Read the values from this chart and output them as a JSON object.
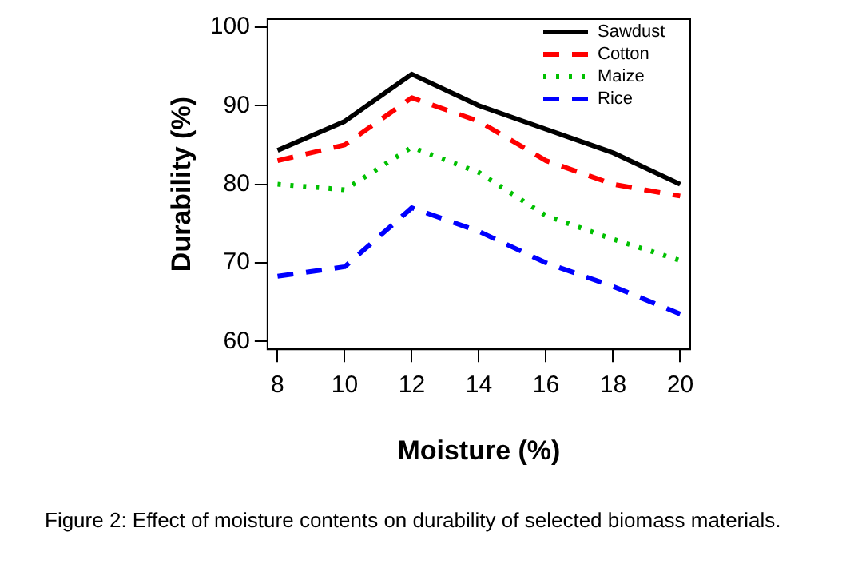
{
  "chart_data": {
    "type": "line",
    "xlabel": "Moisture (%)",
    "ylabel": "Durability (%)",
    "x": [
      8,
      10,
      12,
      14,
      16,
      18,
      20
    ],
    "xlim": [
      7.7,
      20.3
    ],
    "xticks": [
      8,
      10,
      12,
      14,
      16,
      18,
      20
    ],
    "ylim": [
      59,
      101
    ],
    "yticks": [
      60,
      70,
      80,
      90,
      100
    ],
    "grid": false,
    "legend": "top right",
    "marker": "none",
    "series": [
      {
        "name": "Sawdust",
        "color": "#000000",
        "line_style": "solid",
        "values": [
          84.3,
          88,
          94,
          90,
          87,
          84,
          80
        ]
      },
      {
        "name": "Cotton",
        "color": "#ff0000",
        "line_style": "dashed",
        "values": [
          83,
          85,
          91,
          88,
          83,
          80,
          78.5
        ]
      },
      {
        "name": "Maize",
        "color": "#00c000",
        "line_style": "dotted",
        "values": [
          80,
          79.3,
          84.7,
          81.5,
          76,
          73,
          70.3
        ]
      },
      {
        "name": "Rice",
        "color": "#0000ff",
        "line_style": "dashed",
        "values": [
          68.3,
          69.5,
          77,
          74,
          70,
          67,
          63.5
        ]
      }
    ],
    "annotations": [
      "Figure 2: Effect of moisture contents on durability of selected biomass materials."
    ]
  }
}
